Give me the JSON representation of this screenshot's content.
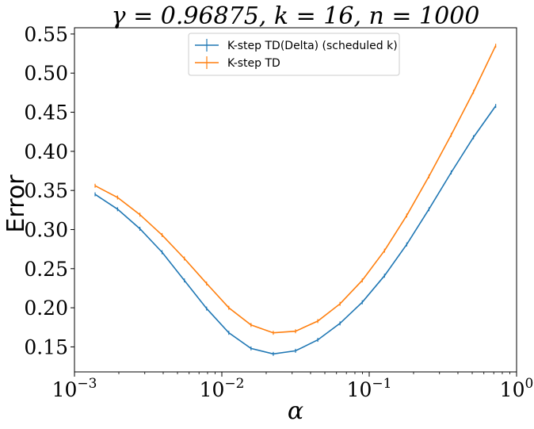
{
  "chart_data": {
    "type": "line",
    "title": "γ = 0.96875, k = 16, n = 1000",
    "xlabel": "α",
    "ylabel": "Error",
    "xscale": "log",
    "xlim": [
      0.001,
      1
    ],
    "ylim": [
      0.118,
      0.558
    ],
    "x_ticks": [
      {
        "value": 0.001,
        "base": "10",
        "exp": "−3"
      },
      {
        "value": 0.01,
        "base": "10",
        "exp": "−2"
      },
      {
        "value": 0.1,
        "base": "10",
        "exp": "−1"
      },
      {
        "value": 1,
        "base": "10",
        "exp": "0"
      }
    ],
    "y_ticks": [
      {
        "value": 0.15,
        "label": "0.15"
      },
      {
        "value": 0.2,
        "label": "0.20"
      },
      {
        "value": 0.25,
        "label": "0.25"
      },
      {
        "value": 0.3,
        "label": "0.30"
      },
      {
        "value": 0.35,
        "label": "0.35"
      },
      {
        "value": 0.4,
        "label": "0.40"
      },
      {
        "value": 0.45,
        "label": "0.45"
      },
      {
        "value": 0.5,
        "label": "0.50"
      },
      {
        "value": 0.55,
        "label": "0.55"
      }
    ],
    "grid": false,
    "legend_position": "top-center",
    "x": [
      0.00138,
      0.00196,
      0.00278,
      0.00393,
      0.00557,
      0.00788,
      0.01115,
      0.01578,
      0.02234,
      0.03162,
      0.04477,
      0.06336,
      0.08969,
      0.12697,
      0.17973,
      0.25441,
      0.36013,
      0.50977,
      0.7216
    ],
    "series": [
      {
        "name": "K-step TD(Delta) (scheduled k)",
        "color": "#1f77b4",
        "values": [
          0.345,
          0.326,
          0.301,
          0.271,
          0.235,
          0.199,
          0.168,
          0.148,
          0.141,
          0.145,
          0.159,
          0.18,
          0.207,
          0.241,
          0.281,
          0.326,
          0.373,
          0.418,
          0.458
        ]
      },
      {
        "name": "K-step TD",
        "color": "#ff7f0e",
        "values": [
          0.356,
          0.341,
          0.319,
          0.293,
          0.263,
          0.231,
          0.2,
          0.178,
          0.168,
          0.17,
          0.183,
          0.205,
          0.235,
          0.273,
          0.318,
          0.368,
          0.421,
          0.476,
          0.535
        ]
      }
    ]
  }
}
